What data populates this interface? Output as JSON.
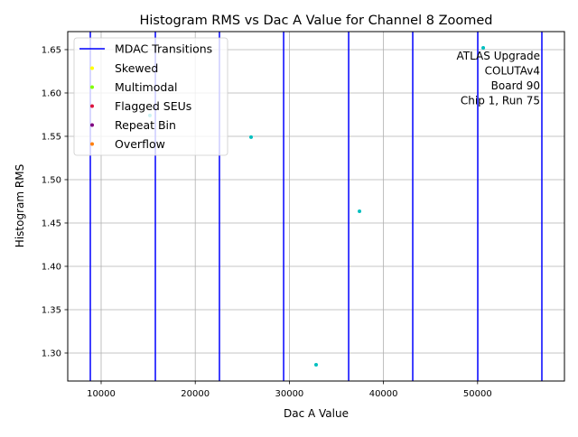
{
  "chart_data": {
    "type": "scatter",
    "title": "Histogram RMS vs Dac A Value for Channel 8 Zoomed",
    "xlabel": "Dac A Value",
    "ylabel": "Histogram RMS",
    "xlim": [
      6450,
      59230
    ],
    "ylim": [
      1.2677,
      1.6708
    ],
    "xticks": [
      10000,
      20000,
      30000,
      40000,
      50000
    ],
    "xtick_labels": [
      "10000",
      "20000",
      "30000",
      "40000",
      "50000"
    ],
    "yticks": [
      1.3,
      1.35,
      1.4,
      1.45,
      1.5,
      1.55,
      1.6,
      1.65
    ],
    "ytick_labels": [
      "1.30",
      "1.35",
      "1.40",
      "1.45",
      "1.50",
      "1.55",
      "1.60",
      "1.65"
    ],
    "grid": true,
    "legend_placement": "upper-left",
    "mdac_transitions": {
      "name": "MDAC Transitions",
      "color": "#0000ff",
      "x": [
        8850,
        15760,
        22570,
        29390,
        36300,
        43110,
        50020,
        56830
      ]
    },
    "series": [
      {
        "name": "Skewed",
        "color": "#ffff00",
        "x": [],
        "y": []
      },
      {
        "name": "Multimodal",
        "color": "#80ff00",
        "x": [],
        "y": []
      },
      {
        "name": "Flagged SEUs",
        "color": "#dc143c",
        "x": [],
        "y": []
      },
      {
        "name": "Repeat Bin",
        "color": "#800080",
        "x": [],
        "y": []
      },
      {
        "name": "Overflow",
        "color": "#ff7f0e",
        "x": [],
        "y": []
      }
    ],
    "points": {
      "color": "#00bfbf",
      "x": [
        15180,
        25930,
        32840,
        37450,
        50600
      ],
      "y": [
        1.574,
        1.549,
        1.2865,
        1.4635,
        1.652
      ]
    },
    "annotation": [
      "ATLAS Upgrade",
      "COLUTAv4 ",
      "Board 90",
      "Chip 1, Run 75"
    ]
  }
}
